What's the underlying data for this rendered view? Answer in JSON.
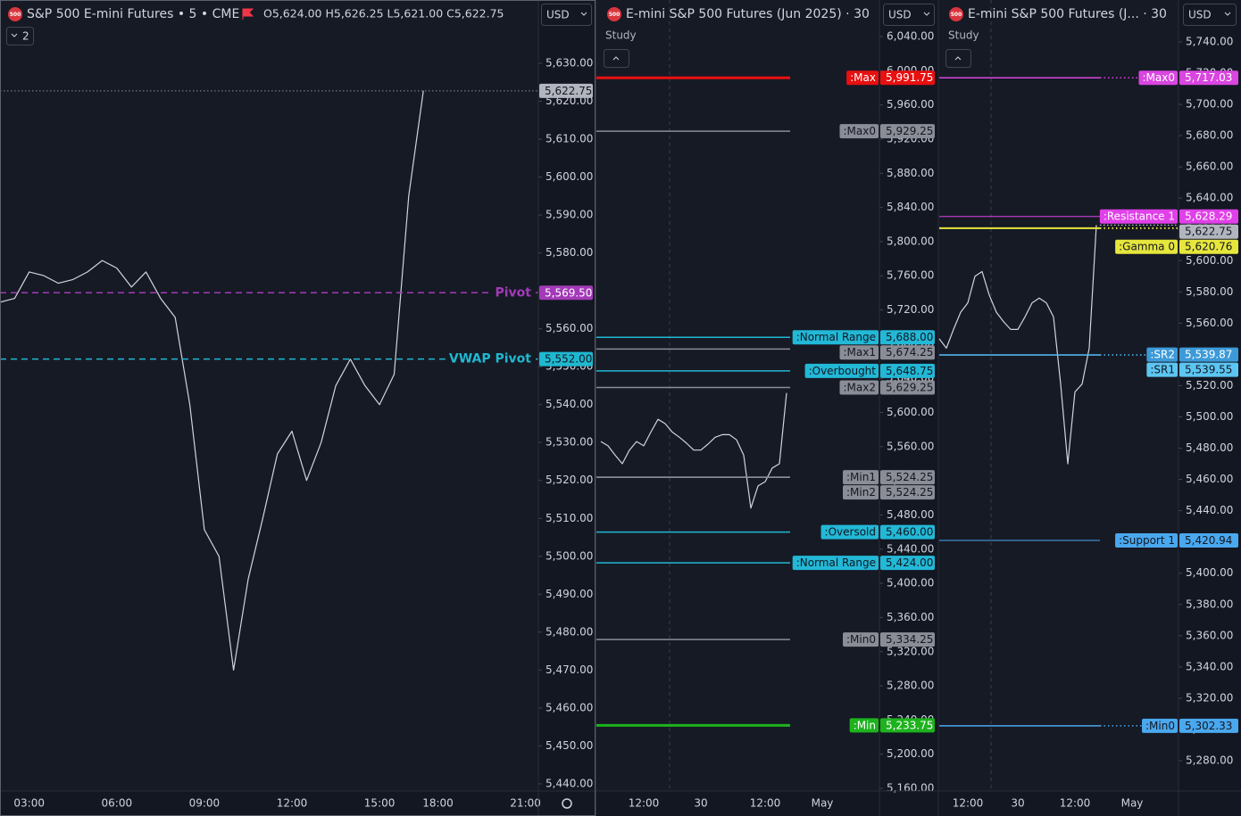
{
  "chart_data": [
    {
      "type": "line",
      "logo": "500",
      "title": "S&P 500 E-mini Futures • 5 • CME",
      "quote": "O5,624.00 H5,626.25 L5,621.00 C5,622.75",
      "currency": "USD",
      "pane_count": "2",
      "level_label": "inline",
      "categories": [
        null,
        null,
        "03:00",
        null,
        null,
        null,
        null,
        null,
        "06:00",
        null,
        null,
        null,
        null,
        null,
        "09:00",
        null,
        null,
        null,
        null,
        null,
        "12:00",
        null,
        null,
        null,
        null,
        null,
        "15:00",
        null,
        null,
        null,
        "18:00",
        null,
        null,
        null,
        null,
        null,
        "21:00"
      ],
      "values": [
        5567,
        5568,
        5575,
        5574,
        5572,
        5573,
        5575,
        5578,
        5576,
        5571,
        5575,
        5568,
        5563,
        5540,
        5507,
        5500,
        5470,
        5494,
        5510,
        5527,
        5533,
        5520,
        5530,
        5545,
        5552,
        5545,
        5540,
        5548,
        5595,
        5622.75,
        null,
        null,
        null,
        null,
        null,
        null,
        null
      ],
      "color": "#d1d4dc",
      "last": {
        "value": 5622.75,
        "label": "5,622.75",
        "line": "full"
      },
      "levels": [
        {
          "name": "Pivot",
          "value": 5569.5,
          "value_label": "5,569.50",
          "color": "#a33ab8",
          "style": "dashed",
          "line_width": 1.5
        },
        {
          "name": "VWAP Pivot",
          "value": 5552,
          "value_label": "5,552.00",
          "color": "#1fb8d0",
          "style": "dashed",
          "line_width": 1.5
        }
      ],
      "ylim": [
        5438.1,
        5646.7
      ],
      "yticks": [
        {
          "value": 5440,
          "label": "5,440.00"
        },
        {
          "value": 5450,
          "label": "5,450.00"
        },
        {
          "value": 5460,
          "label": "5,460.00"
        },
        {
          "value": 5470,
          "label": "5,470.00"
        },
        {
          "value": 5480,
          "label": "5,480.00"
        },
        {
          "value": 5490,
          "label": "5,490.00"
        },
        {
          "value": 5500,
          "label": "5,500.00"
        },
        {
          "value": 5510,
          "label": "5,510.00"
        },
        {
          "value": 5520,
          "label": "5,520.00"
        },
        {
          "value": 5530,
          "label": "5,530.00"
        },
        {
          "value": 5540,
          "label": "5,540.00"
        },
        {
          "value": 5550,
          "label": "5,550.00"
        },
        {
          "value": 5560,
          "label": "5,560.00"
        },
        {
          "value": 5570,
          "label": "5,570.00"
        },
        {
          "value": 5580,
          "label": "5,580.00"
        },
        {
          "value": 5590,
          "label": "5,590.00"
        },
        {
          "value": 5600,
          "label": "5,600.00"
        },
        {
          "value": 5610,
          "label": "5,610.00"
        },
        {
          "value": 5620,
          "label": "5,620.00"
        },
        {
          "value": 5630,
          "label": "5,630.00"
        }
      ]
    },
    {
      "type": "line",
      "logo": "500",
      "title": "E-mini S&P 500 Futures (Jun 2025) · 30",
      "study": "Study",
      "currency": "USD",
      "level_label": "tag",
      "categories": [
        null,
        null,
        null,
        null,
        null,
        null,
        "12:00",
        null,
        null,
        null,
        null,
        null,
        null,
        null,
        "30",
        null,
        null,
        null,
        null,
        null,
        null,
        null,
        null,
        "12:00",
        null,
        null,
        null,
        null,
        null,
        null,
        null,
        "May"
      ],
      "values": [
        5566,
        5561,
        5550,
        5540,
        5556,
        5566,
        5561,
        5577,
        5592,
        5587,
        5577,
        5571,
        5564,
        5556,
        5556,
        5563,
        5571,
        5574,
        5574,
        5568,
        5550,
        5488,
        5514,
        5519,
        5535,
        5540,
        5622.75,
        null,
        null,
        null,
        null,
        null
      ],
      "color": "#d1d4dc",
      "levels": [
        {
          "name": ":Max",
          "value": 5991.75,
          "value_label": "5,991.75",
          "color": "#e81010",
          "style": "solid",
          "line_width": 3
        },
        {
          "name": ":Max0",
          "value": 5929.25,
          "value_label": "5,929.25",
          "color": "#8a8d96",
          "style": "solid",
          "line_width": 1.5
        },
        {
          "name": ":Normal Range",
          "value": 5688,
          "value_label": "5,688.00",
          "color": "#22b8d6",
          "style": "solid",
          "line_width": 1.5
        },
        {
          "name": ":Max1",
          "value": 5674.25,
          "value_label": "5,674.25",
          "color": "#8a8d96",
          "style": "solid",
          "line_width": 1.5
        },
        {
          "name": ":Overbought",
          "value": 5648.75,
          "value_label": "5,648.75",
          "color": "#22b8d6",
          "style": "solid",
          "line_width": 1.5
        },
        {
          "name": ":Max2",
          "value": 5629.25,
          "value_label": "5,629.25",
          "color": "#8a8d96",
          "style": "solid",
          "line_width": 1.5
        },
        {
          "name": ":Min1",
          "value": 5524.25,
          "value_label": "5,524.25",
          "color": "#8a8d96",
          "style": "solid",
          "line_width": 1.5
        },
        {
          "name": ":Min2",
          "value": 5524.25,
          "value_label": "5,524.25",
          "color": "#8a8d96",
          "style": "solid",
          "line_width": 1.5
        },
        {
          "name": ":Oversold",
          "value": 5460,
          "value_label": "5,460.00",
          "color": "#22b8d6",
          "style": "solid",
          "line_width": 1.5
        },
        {
          "name": ":Normal Range",
          "value": 5424,
          "value_label": "5,424.00",
          "color": "#22b8d6",
          "style": "solid",
          "line_width": 1.5
        },
        {
          "name": ":Min0",
          "value": 5334.25,
          "value_label": "5,334.25",
          "color": "#8a8d96",
          "style": "solid",
          "line_width": 1.5
        },
        {
          "name": ":Min",
          "value": 5233.75,
          "value_label": "5,233.75",
          "color": "#1db31d",
          "style": "solid",
          "line_width": 3
        }
      ],
      "ylim": [
        5156.9,
        6082.8
      ],
      "yticks": [
        {
          "value": 5160,
          "label": "5,160.00"
        },
        {
          "value": 5200,
          "label": "5,200.00"
        },
        {
          "value": 5240,
          "label": "5,240.00"
        },
        {
          "value": 5280,
          "label": "5,280.00"
        },
        {
          "value": 5320,
          "label": "5,320.00"
        },
        {
          "value": 5360,
          "label": "5,360.00"
        },
        {
          "value": 5400,
          "label": "5,400.00"
        },
        {
          "value": 5440,
          "label": "5,440.00"
        },
        {
          "value": 5480,
          "label": "5,480.00"
        },
        {
          "value": 5520,
          "label": "5,520.00"
        },
        {
          "value": 5560,
          "label": "5,560.00"
        },
        {
          "value": 5600,
          "label": "5,600.00"
        },
        {
          "value": 5640,
          "label": "5,640.00"
        },
        {
          "value": 5680,
          "label": "5,680.00"
        },
        {
          "value": 5720,
          "label": "5,720.00"
        },
        {
          "value": 5760,
          "label": "5,760.00"
        },
        {
          "value": 5800,
          "label": "5,800.00"
        },
        {
          "value": 5840,
          "label": "5,840.00"
        },
        {
          "value": 5880,
          "label": "5,880.00"
        },
        {
          "value": 5920,
          "label": "5,920.00"
        },
        {
          "value": 5960,
          "label": "5,960.00"
        },
        {
          "value": 6000,
          "label": "6,000.00"
        },
        {
          "value": 6040,
          "label": "6,040.00"
        }
      ]
    },
    {
      "type": "line",
      "logo": "500",
      "title": "E-mini S&P 500 Futures (J... · 30",
      "study": "Study",
      "currency": "USD",
      "level_label": "tag",
      "categories": [
        null,
        null,
        null,
        null,
        "12:00",
        null,
        null,
        null,
        null,
        null,
        null,
        "30",
        null,
        null,
        null,
        null,
        null,
        null,
        null,
        "12:00",
        null,
        null,
        null,
        null,
        null,
        null,
        null,
        "May"
      ],
      "values": [
        5550,
        5544,
        5556,
        5567,
        5573,
        5590,
        5593,
        5578,
        5567,
        5561,
        5556,
        5556,
        5564,
        5573,
        5576,
        5573,
        5564,
        5521,
        5470,
        5516,
        5521,
        5544,
        5622.75,
        null,
        null,
        null,
        null,
        null
      ],
      "color": "#d1d4dc",
      "last": {
        "value": 5622.75,
        "label": "5,622.75",
        "line": "after-data"
      },
      "levels": [
        {
          "name": ":Max0",
          "value": 5717.03,
          "value_label": "5,717.03",
          "color": "#d946e0",
          "style": "solid-dotted",
          "line_width": 1.5
        },
        {
          "name": ":Resistance 1",
          "value": 5628.29,
          "value_label": "5,628.29",
          "color": "#e040e8",
          "style": "solid",
          "line_width": 1
        },
        {
          "name": ":Gamma 0",
          "value": 5620.76,
          "value_label": "5,620.76",
          "color": "#e6e63c",
          "style": "solid-dotted",
          "line_width": 2
        },
        {
          "name": ":SR2",
          "value": 5539.87,
          "value_label": "5,539.87",
          "color": "#3d9ad8",
          "style": "solid-dotted",
          "line_width": 1
        },
        {
          "name": ":SR1",
          "value": 5539.55,
          "value_label": "5,539.55",
          "color": "#5cc6f2",
          "style": "solid-dotted",
          "line_width": 1
        },
        {
          "name": ":Support 1",
          "value": 5420.94,
          "value_label": "5,420.94",
          "color": "#4aa8ee",
          "style": "solid",
          "line_width": 1
        },
        {
          "name": ":Min0",
          "value": 5302.33,
          "value_label": "5,302.33",
          "color": "#4aa8ee",
          "style": "solid-dotted",
          "line_width": 1.5
        }
      ],
      "ylim": [
        5260.6,
        5766.8
      ],
      "yticks": [
        {
          "value": 5280,
          "label": "5,280.00"
        },
        {
          "value": 5300,
          "label": "5,300.00"
        },
        {
          "value": 5320,
          "label": "5,320.00"
        },
        {
          "value": 5340,
          "label": "5,340.00"
        },
        {
          "value": 5360,
          "label": "5,360.00"
        },
        {
          "value": 5380,
          "label": "5,380.00"
        },
        {
          "value": 5400,
          "label": "5,400.00"
        },
        {
          "value": 5420,
          "label": "5,420.00"
        },
        {
          "value": 5440,
          "label": "5,440.00"
        },
        {
          "value": 5460,
          "label": "5,460.00"
        },
        {
          "value": 5480,
          "label": "5,480.00"
        },
        {
          "value": 5500,
          "label": "5,500.00"
        },
        {
          "value": 5520,
          "label": "5,520.00"
        },
        {
          "value": 5540,
          "label": "5,540.00"
        },
        {
          "value": 5560,
          "label": "5,560.00"
        },
        {
          "value": 5580,
          "label": "5,580.00"
        },
        {
          "value": 5600,
          "label": "5,600.00"
        },
        {
          "value": 5620,
          "label": "5,620.00"
        },
        {
          "value": 5640,
          "label": "5,640.00"
        },
        {
          "value": 5660,
          "label": "5,660.00"
        },
        {
          "value": 5680,
          "label": "5,680.00"
        },
        {
          "value": 5700,
          "label": "5,700.00"
        },
        {
          "value": 5720,
          "label": "5,720.00"
        },
        {
          "value": 5740,
          "label": "5,740.00"
        }
      ]
    }
  ]
}
